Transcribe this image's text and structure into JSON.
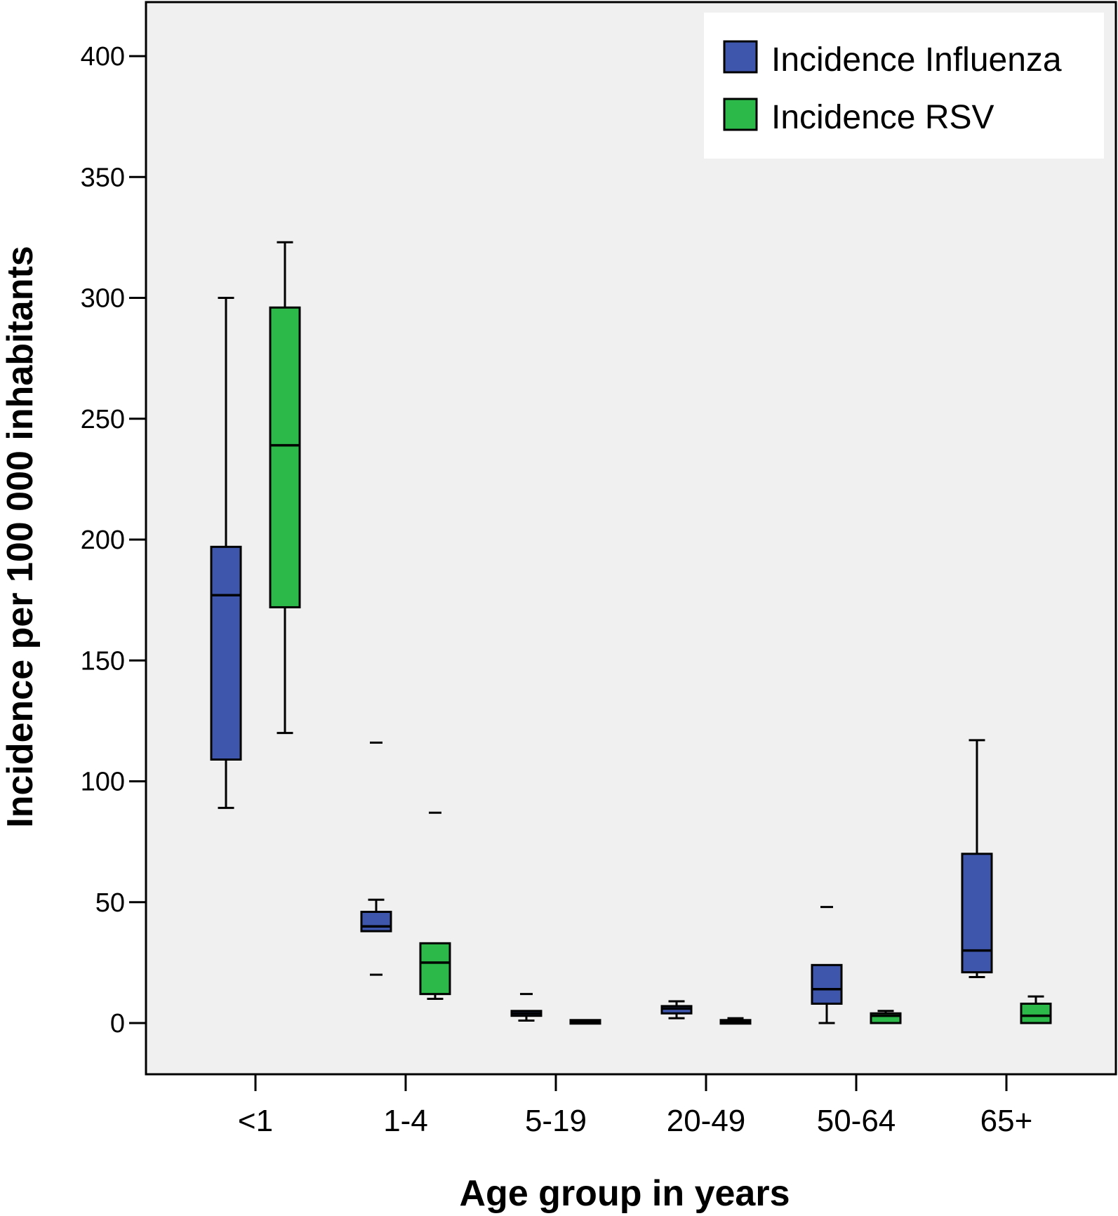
{
  "chart_data": {
    "type": "boxplot",
    "xlabel": "Age group  in years",
    "ylabel": "Incidence per 100 000 inhabitants",
    "ylim": [
      -22,
      420
    ],
    "yticks": [
      0,
      50,
      100,
      150,
      200,
      250,
      300,
      350,
      400
    ],
    "categories": [
      "<1",
      "1-4",
      "5-19",
      "20-49",
      "50-64",
      "65+"
    ],
    "legend_position": "top-right",
    "grid": false,
    "background_color": "#f0f0f0",
    "series": [
      {
        "name": "Incidence Influenza",
        "color": "#3f56ad",
        "boxes": [
          {
            "category": "<1",
            "min": 89,
            "q1": 109,
            "median": 177,
            "q3": 197,
            "max": 300,
            "outliers": []
          },
          {
            "category": "1-4",
            "min": 38,
            "q1": 38,
            "median": 40,
            "q3": 46,
            "max": 51,
            "outliers": [
              20,
              116
            ]
          },
          {
            "category": "5-19",
            "min": 1,
            "q1": 3,
            "median": 4,
            "q3": 5,
            "max": 5,
            "outliers": [
              12
            ]
          },
          {
            "category": "20-49",
            "min": 2,
            "q1": 4,
            "median": 6,
            "q3": 7,
            "max": 9,
            "outliers": []
          },
          {
            "category": "50-64",
            "min": 0,
            "q1": 8,
            "median": 14,
            "q3": 24,
            "max": 24,
            "outliers": [
              48
            ]
          },
          {
            "category": "65+",
            "min": 19,
            "q1": 21,
            "median": 30,
            "q3": 70,
            "max": 117,
            "outliers": []
          }
        ]
      },
      {
        "name": "Incidence RSV",
        "color": "#2db84a",
        "boxes": [
          {
            "category": "<1",
            "min": 120,
            "q1": 172,
            "median": 239,
            "q3": 296,
            "max": 323,
            "outliers": []
          },
          {
            "category": "1-4",
            "min": 10,
            "q1": 12,
            "median": 25,
            "q3": 33,
            "max": 33,
            "outliers": [
              87
            ]
          },
          {
            "category": "5-19",
            "min": 0,
            "q1": 0,
            "median": 0.5,
            "q3": 1,
            "max": 1,
            "outliers": []
          },
          {
            "category": "20-49",
            "min": 0,
            "q1": 0,
            "median": 0.5,
            "q3": 1,
            "max": 2,
            "outliers": []
          },
          {
            "category": "50-64",
            "min": 0,
            "q1": 0,
            "median": 3,
            "q3": 4,
            "max": 5,
            "outliers": []
          },
          {
            "category": "65+",
            "min": 0,
            "q1": 0,
            "median": 3,
            "q3": 8,
            "max": 11,
            "outliers": []
          }
        ]
      }
    ]
  }
}
